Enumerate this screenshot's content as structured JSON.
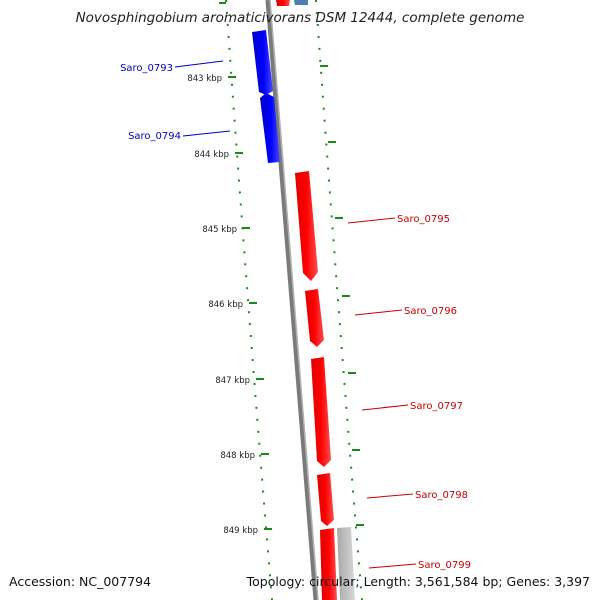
{
  "title": "Novosphingobium aromaticivorans DSM 12444, complete genome",
  "footer": {
    "accession": "Accession: NC_007794",
    "topology": "Topology: circular; Length: 3,561,584 bp; Genes: 3,397"
  },
  "ruler": {
    "ticks": [
      "843 kbp",
      "844 kbp",
      "845 kbp",
      "846 kbp",
      "847 kbp",
      "848 kbp",
      "849 kbp"
    ]
  },
  "genes": {
    "reverse_strand": [
      "Saro_0793",
      "Saro_0794"
    ],
    "forward_strand": [
      "Saro_0795",
      "Saro_0796",
      "Saro_0797",
      "Saro_0798",
      "Saro_0799"
    ]
  },
  "colors": {
    "reverse_gene": "#0000ee",
    "forward_gene": "#ee0000",
    "reverse_label": "#0000cc",
    "forward_label": "#cc0000",
    "backbone": "#808080",
    "tick": "#1a8a1a",
    "other_feature": "#b8b8b8",
    "top_feature": "#4a7fb0"
  }
}
